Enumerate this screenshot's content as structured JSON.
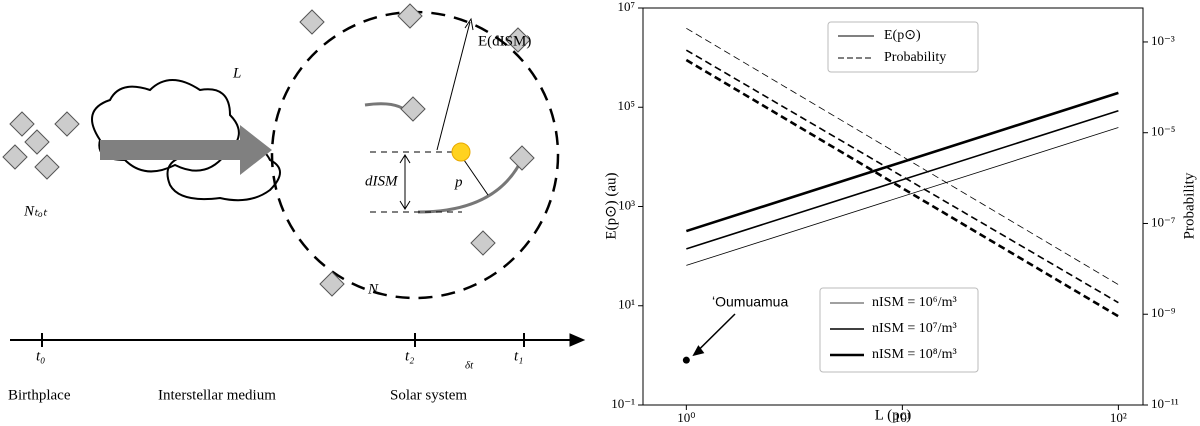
{
  "diagram": {
    "cloud_label": "L",
    "distance_label": "E(dISM)",
    "d_label": "dISM",
    "p_label": "p",
    "n_label": "N",
    "ntot_label": "Nₜₒₜ",
    "timeline": [
      "t₀",
      "t₂",
      "δt",
      "t₁"
    ],
    "stages": [
      "Birthplace",
      "Interstellar medium",
      "Solar system"
    ]
  },
  "chart_data": {
    "type": "line",
    "x": [
      1,
      100
    ],
    "series": [
      {
        "name": "nISM = 10⁶/m³",
        "color": "#000000",
        "width": 0.8,
        "values": [
          65,
          39000
        ],
        "probability": [
          0.002,
          4.5e-09
        ]
      },
      {
        "name": "nISM = 10⁷/m³",
        "color": "#000000",
        "width": 1.6,
        "values": [
          140,
          85000
        ],
        "probability": [
          0.00066,
          1.8e-09
        ]
      },
      {
        "name": "nISM = 10⁸/m³",
        "color": "#000000",
        "width": 2.6,
        "values": [
          320,
          195000
        ],
        "probability": [
          0.0004,
          9e-10
        ]
      }
    ],
    "style_legend": [
      "E(p⊙)",
      "Probability"
    ],
    "point": {
      "label": "ʻOumuamua",
      "x": 1,
      "y": 0.8
    },
    "xlabel": "L (pc)",
    "ylabel": "E(p⊙) (au)",
    "y2label": "Probability",
    "log_x": true,
    "log_y": true,
    "xlim": [
      0.63,
      130
    ],
    "ylim": [
      0.1,
      10000000
    ],
    "y2lim": [
      1e-11,
      0.0056
    ],
    "xticks": [
      {
        "value": 1,
        "label": "10⁰"
      },
      {
        "value": 10,
        "label": "10¹"
      },
      {
        "value": 100,
        "label": "10²"
      }
    ],
    "yticks": [
      {
        "value": 0.1,
        "label": "10⁻¹"
      },
      {
        "value": 10,
        "label": "10¹"
      },
      {
        "value": 1000,
        "label": "10³"
      },
      {
        "value": 100000,
        "label": "10⁵"
      },
      {
        "value": 10000000,
        "label": "10⁷"
      }
    ],
    "y2ticks": [
      {
        "value": 1e-11,
        "label": "10⁻¹¹"
      },
      {
        "value": 1e-09,
        "label": "10⁻⁹"
      },
      {
        "value": 1e-07,
        "label": "10⁻⁷"
      },
      {
        "value": 1e-05,
        "label": "10⁻⁵"
      },
      {
        "value": 0.001,
        "label": "10⁻³"
      }
    ]
  }
}
